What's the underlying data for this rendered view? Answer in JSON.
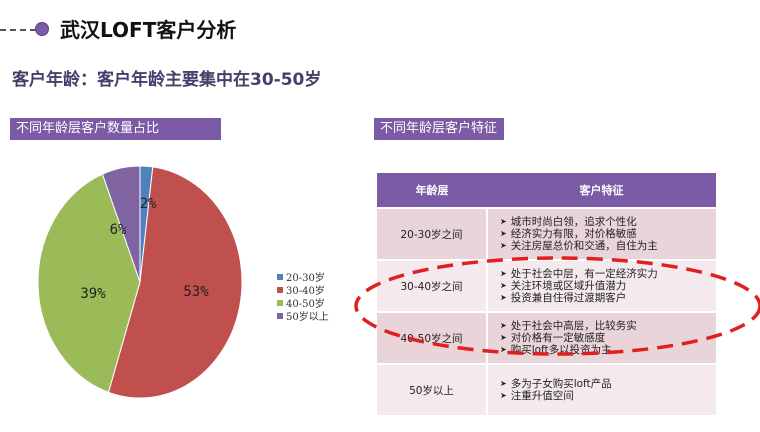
{
  "header": {
    "title": "武汉LOFT客户分析"
  },
  "subtitle": "客户年龄：客户年龄主要集中在30-50岁",
  "left_panel": {
    "banner": "不同年龄层客户数量占比"
  },
  "right_panel": {
    "banner": "不同年龄层客户特征"
  },
  "chart_data": {
    "type": "pie",
    "categories": [
      "20-30岁",
      "30-40岁",
      "40-50岁",
      "50岁以上"
    ],
    "values": [
      2,
      53,
      39,
      6
    ],
    "data_labels": [
      "2%",
      "53%",
      "39%",
      "6%"
    ],
    "colors": [
      "#4f81bd",
      "#c0504d",
      "#9bbb59",
      "#8064a2"
    ],
    "legend_position": "right"
  },
  "table": {
    "headers": [
      "年龄层",
      "客户特征"
    ],
    "rows": [
      {
        "age": "20-30岁之间",
        "features": [
          "城市时尚白领，追求个性化",
          "经济实力有限，对价格敏感",
          "关注房屋总价和交通，自住为主"
        ]
      },
      {
        "age": "30-40岁之间",
        "features": [
          "处于社会中层，有一定经济实力",
          "关注环境或区域升值潜力",
          "投资兼自住得过渡期客户"
        ]
      },
      {
        "age": "40-50岁之间",
        "features": [
          "处于社会中高层，比较务实",
          "对价格有一定敏感度",
          "购买loft多以投资为主"
        ]
      },
      {
        "age": "50岁以上",
        "features": [
          "多为子女购买loft产品",
          "注重升值空间"
        ]
      }
    ]
  },
  "highlight_color": "#e02020"
}
